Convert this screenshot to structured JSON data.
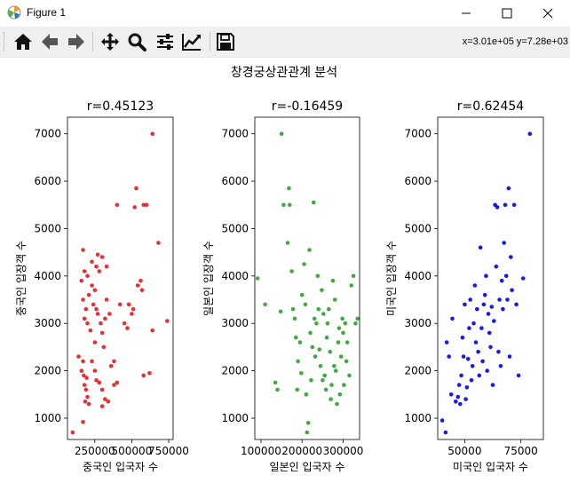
{
  "window": {
    "title": "Figure 1",
    "controls": [
      "minimize",
      "maximize",
      "close"
    ]
  },
  "toolbar": {
    "buttons": [
      {
        "name": "home",
        "icon": "home-icon"
      },
      {
        "name": "back",
        "icon": "arrow-left-icon"
      },
      {
        "name": "forward",
        "icon": "arrow-right-icon"
      },
      {
        "name": "pan",
        "icon": "move-icon"
      },
      {
        "name": "zoom",
        "icon": "magnifier-icon"
      },
      {
        "name": "configure-subplots",
        "icon": "sliders-icon"
      },
      {
        "name": "edit-axis",
        "icon": "line-chart-icon"
      },
      {
        "name": "save",
        "icon": "floppy-disk-icon"
      }
    ],
    "coords_text": "x=3.01e+05 y=7.28e+03"
  },
  "figure": {
    "suptitle": "창경궁상관관계 분석"
  },
  "chart_data": [
    {
      "type": "scatter",
      "title": "r=0.45123",
      "xlabel": "중국인 입국자 수",
      "ylabel": "중국인 입장객 수",
      "color": "#e41a1c",
      "xlim": [
        65000,
        780000
      ],
      "ylim": [
        550,
        7350
      ],
      "xticks": [
        250000,
        500000,
        750000
      ],
      "xtick_labels": [
        "250000",
        "500000",
        "750000"
      ],
      "yticks": [
        1000,
        2000,
        3000,
        4000,
        5000,
        6000,
        7000
      ],
      "ytick_labels": [
        "1000",
        "2000",
        "3000",
        "4000",
        "5000",
        "6000",
        "7000"
      ],
      "points": [
        [
          100000,
          700
        ],
        [
          170000,
          920
        ],
        [
          140000,
          2300
        ],
        [
          170000,
          2200
        ],
        [
          160000,
          2000
        ],
        [
          175000,
          1900
        ],
        [
          195000,
          1850
        ],
        [
          180000,
          1700
        ],
        [
          190000,
          1600
        ],
        [
          200000,
          1450
        ],
        [
          185000,
          1350
        ],
        [
          210000,
          1300
        ],
        [
          230000,
          2200
        ],
        [
          250000,
          2000
        ],
        [
          260000,
          1800
        ],
        [
          280000,
          1750
        ],
        [
          300000,
          1600
        ],
        [
          320000,
          1400
        ],
        [
          340000,
          1350
        ],
        [
          300000,
          1250
        ],
        [
          380000,
          1700
        ],
        [
          400000,
          1750
        ],
        [
          360000,
          2100
        ],
        [
          310000,
          2500
        ],
        [
          250000,
          2600
        ],
        [
          220000,
          2850
        ],
        [
          200000,
          3000
        ],
        [
          180000,
          3100
        ],
        [
          190000,
          3300
        ],
        [
          170000,
          3500
        ],
        [
          210000,
          3600
        ],
        [
          230000,
          3800
        ],
        [
          250000,
          3700
        ],
        [
          240000,
          3400
        ],
        [
          260000,
          3300
        ],
        [
          270000,
          3200
        ],
        [
          290000,
          3000
        ],
        [
          300000,
          2800
        ],
        [
          320000,
          3100
        ],
        [
          330000,
          3500
        ],
        [
          350000,
          3200
        ],
        [
          160000,
          3900
        ],
        [
          180000,
          4100
        ],
        [
          200000,
          4000
        ],
        [
          230000,
          4300
        ],
        [
          260000,
          4200
        ],
        [
          280000,
          4100
        ],
        [
          300000,
          4400
        ],
        [
          270000,
          4450
        ],
        [
          170000,
          4550
        ],
        [
          330000,
          4200
        ],
        [
          380000,
          2200
        ],
        [
          420000,
          3400
        ],
        [
          450000,
          3000
        ],
        [
          470000,
          2900
        ],
        [
          480000,
          3400
        ],
        [
          500000,
          3200
        ],
        [
          510000,
          3300
        ],
        [
          540000,
          3800
        ],
        [
          560000,
          3900
        ],
        [
          570000,
          3700
        ],
        [
          580000,
          1900
        ],
        [
          620000,
          1950
        ],
        [
          640000,
          2850
        ],
        [
          680000,
          4700
        ],
        [
          740000,
          3050
        ],
        [
          400000,
          5500
        ],
        [
          520000,
          5450
        ],
        [
          530000,
          5850
        ],
        [
          580000,
          5500
        ],
        [
          600000,
          5500
        ],
        [
          640000,
          7000
        ]
      ]
    },
    {
      "type": "scatter",
      "title": "r=-0.16459",
      "xlabel": "일본인 입국자 수",
      "ylabel": "일본인 입장객 수",
      "color": "#2ca02c",
      "xlim": [
        85000,
        340000
      ],
      "ylim": [
        550,
        7350
      ],
      "xticks": [
        100000,
        200000,
        300000
      ],
      "xtick_labels": [
        "100000",
        "200000",
        "300000"
      ],
      "yticks": [
        1000,
        2000,
        3000,
        4000,
        5000,
        6000,
        7000
      ],
      "ytick_labels": [
        "1000",
        "2000",
        "3000",
        "4000",
        "5000",
        "6000",
        "7000"
      ],
      "points": [
        [
          92000,
          3950
        ],
        [
          110000,
          3400
        ],
        [
          135000,
          1750
        ],
        [
          140000,
          1600
        ],
        [
          148000,
          3250
        ],
        [
          150000,
          7000
        ],
        [
          155000,
          5500
        ],
        [
          165000,
          4700
        ],
        [
          168000,
          5850
        ],
        [
          170000,
          5500
        ],
        [
          175000,
          4100
        ],
        [
          178000,
          3300
        ],
        [
          182000,
          3100
        ],
        [
          185000,
          2700
        ],
        [
          188000,
          1600
        ],
        [
          190000,
          2200
        ],
        [
          195000,
          2600
        ],
        [
          198000,
          1950
        ],
        [
          200000,
          3600
        ],
        [
          205000,
          4250
        ],
        [
          208000,
          3400
        ],
        [
          210000,
          1500
        ],
        [
          212000,
          700
        ],
        [
          215000,
          900
        ],
        [
          218000,
          4550
        ],
        [
          220000,
          2800
        ],
        [
          222000,
          1800
        ],
        [
          225000,
          2500
        ],
        [
          228000,
          5550
        ],
        [
          230000,
          3100
        ],
        [
          232000,
          2300
        ],
        [
          235000,
          3000
        ],
        [
          238000,
          4000
        ],
        [
          240000,
          3300
        ],
        [
          242000,
          2450
        ],
        [
          245000,
          2100
        ],
        [
          248000,
          3700
        ],
        [
          250000,
          1800
        ],
        [
          252000,
          3200
        ],
        [
          255000,
          1900
        ],
        [
          258000,
          1600
        ],
        [
          260000,
          2700
        ],
        [
          262000,
          3000
        ],
        [
          265000,
          3300
        ],
        [
          268000,
          2400
        ],
        [
          270000,
          1400
        ],
        [
          272000,
          1700
        ],
        [
          275000,
          3900
        ],
        [
          278000,
          2100
        ],
        [
          280000,
          3500
        ],
        [
          282000,
          2000
        ],
        [
          285000,
          1300
        ],
        [
          288000,
          2600
        ],
        [
          290000,
          2900
        ],
        [
          292000,
          1500
        ],
        [
          295000,
          2300
        ],
        [
          298000,
          3100
        ],
        [
          300000,
          2800
        ],
        [
          302000,
          1700
        ],
        [
          305000,
          3000
        ],
        [
          308000,
          2200
        ],
        [
          310000,
          2600
        ],
        [
          315000,
          1900
        ],
        [
          320000,
          3800
        ],
        [
          325000,
          4000
        ],
        [
          330000,
          3000
        ],
        [
          335000,
          3100
        ]
      ]
    },
    {
      "type": "scatter",
      "title": "r=0.62454",
      "xlabel": "미국인 입국자 수",
      "ylabel": "미국인 입장객 수",
      "color": "#0000ee",
      "xlim": [
        38000,
        85000
      ],
      "ylim": [
        550,
        7350
      ],
      "xticks": [
        50000,
        75000
      ],
      "xtick_labels": [
        "50000",
        "75000"
      ],
      "yticks": [
        1000,
        2000,
        3000,
        4000,
        5000,
        6000,
        7000
      ],
      "ytick_labels": [
        "1000",
        "2000",
        "3000",
        "4000",
        "5000",
        "6000",
        "7000"
      ],
      "points": [
        [
          40000,
          950
        ],
        [
          41500,
          700
        ],
        [
          42000,
          2600
        ],
        [
          43000,
          2300
        ],
        [
          44000,
          1500
        ],
        [
          44500,
          3100
        ],
        [
          46000,
          1350
        ],
        [
          47000,
          1450
        ],
        [
          47500,
          1700
        ],
        [
          48000,
          1300
        ],
        [
          48500,
          1900
        ],
        [
          49000,
          2700
        ],
        [
          49500,
          2300
        ],
        [
          50000,
          3400
        ],
        [
          50500,
          1400
        ],
        [
          51000,
          1650
        ],
        [
          51500,
          2250
        ],
        [
          52000,
          2900
        ],
        [
          52500,
          3500
        ],
        [
          53000,
          1800
        ],
        [
          53500,
          2100
        ],
        [
          54000,
          3000
        ],
        [
          54500,
          3800
        ],
        [
          55000,
          2600
        ],
        [
          55500,
          3300
        ],
        [
          56000,
          2400
        ],
        [
          56500,
          1900
        ],
        [
          57000,
          4600
        ],
        [
          57500,
          2900
        ],
        [
          58000,
          2200
        ],
        [
          58500,
          3400
        ],
        [
          59000,
          3600
        ],
        [
          59500,
          4000
        ],
        [
          60000,
          2000
        ],
        [
          60500,
          3200
        ],
        [
          61000,
          2800
        ],
        [
          61500,
          2500
        ],
        [
          62000,
          3350
        ],
        [
          62500,
          1700
        ],
        [
          63000,
          3050
        ],
        [
          63500,
          5500
        ],
        [
          64000,
          4200
        ],
        [
          64500,
          5450
        ],
        [
          65000,
          2400
        ],
        [
          65500,
          3500
        ],
        [
          66000,
          2100
        ],
        [
          66500,
          3900
        ],
        [
          67000,
          3300
        ],
        [
          67500,
          4700
        ],
        [
          68000,
          5500
        ],
        [
          68500,
          4000
        ],
        [
          69000,
          3500
        ],
        [
          69500,
          5850
        ],
        [
          70000,
          2300
        ],
        [
          70500,
          4400
        ],
        [
          71000,
          3700
        ],
        [
          72000,
          5500
        ],
        [
          73000,
          3400
        ],
        [
          74000,
          1900
        ],
        [
          76000,
          3950
        ],
        [
          79000,
          7000
        ]
      ]
    }
  ]
}
